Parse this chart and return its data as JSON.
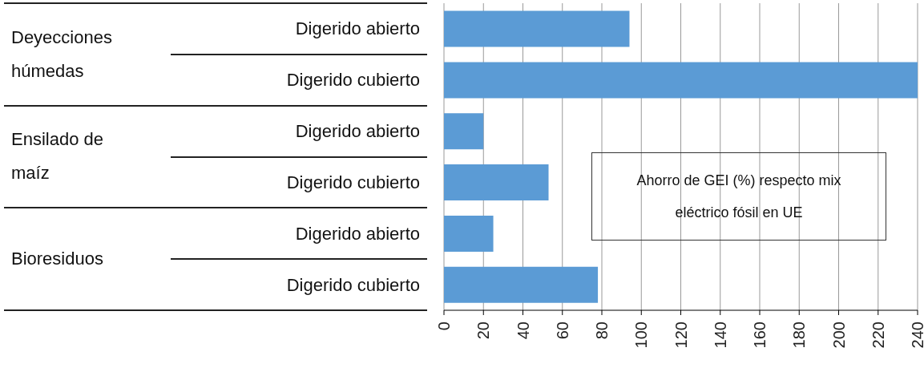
{
  "chart_data": {
    "type": "bar",
    "orientation": "horizontal",
    "categories": [
      "Digerido abierto",
      "Digerido cubierto",
      "Digerido abierto",
      "Digerido cubierto",
      "Digerido abierto",
      "Digerido cubierto"
    ],
    "values": [
      94,
      240,
      20,
      53,
      25,
      78
    ],
    "color": "#5b9bd5",
    "xlim": [
      0,
      240
    ],
    "xticks": [
      0,
      20,
      40,
      60,
      80,
      100,
      120,
      140,
      160,
      180,
      200,
      220,
      240
    ],
    "xlabel": "Ahorro de GEI (%) respecto mix eléctrico fósil en UE",
    "annotations": [
      "Deyecciones húmedas",
      "Ensilado de maíz",
      "Bioresiduos"
    ],
    "grid": "x"
  }
}
